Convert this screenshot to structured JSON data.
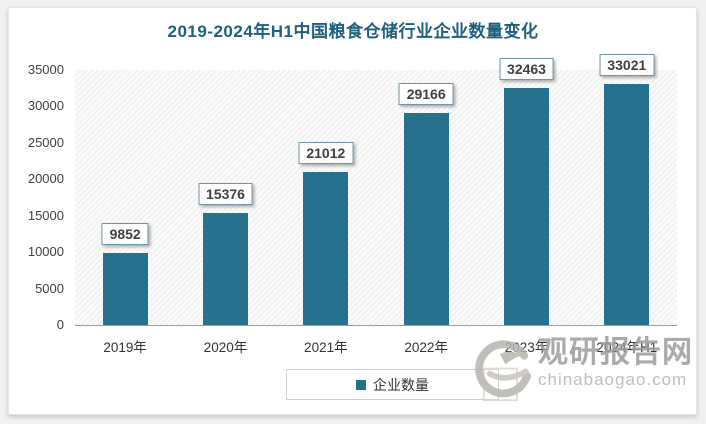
{
  "page": {
    "background": "#f0f0f0",
    "card_background": "#ffffff"
  },
  "title": "2019-2024年H1中国粮食仓储行业企业数量变化",
  "chart_data": {
    "type": "bar",
    "categories": [
      "2019年",
      "2020年",
      "2021年",
      "2022年",
      "2023年",
      "2024年H1"
    ],
    "values": [
      9852,
      15376,
      21012,
      29166,
      32463,
      33021
    ],
    "title": "2019-2024年H1中国粮食仓储行业企业数量变化",
    "xlabel": "",
    "ylabel": "",
    "ylim": [
      0,
      35000
    ],
    "yticks": [
      0,
      5000,
      10000,
      15000,
      20000,
      25000,
      30000,
      35000
    ],
    "grid": false,
    "legend_position": "bottom",
    "series_name": "企业数量",
    "bar_color": "#26718E",
    "data_labels_boxed": true
  },
  "legend": {
    "label": "企业数量",
    "marker_color": "#26718E"
  },
  "watermark": {
    "name": "观研报告网",
    "domain": "chinabaogao.com"
  },
  "colors": {
    "title": "#1F5F7E",
    "bar": "#26718E",
    "axis_text": "#404040",
    "watermark_text": "#9c9c9c",
    "watermark_domain": "#b3b3b3"
  }
}
